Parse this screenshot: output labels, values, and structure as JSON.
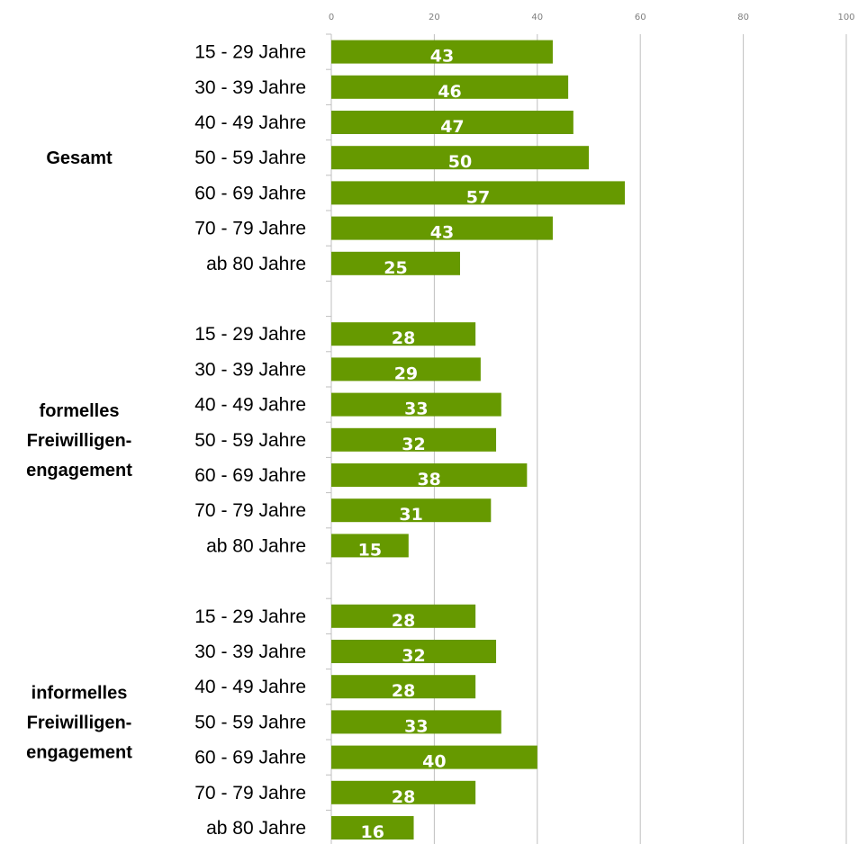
{
  "chart_data": {
    "type": "bar",
    "orientation": "horizontal",
    "xlim": [
      0,
      100
    ],
    "x_ticks": [
      "0",
      "20",
      "40",
      "60",
      "80",
      "100"
    ],
    "grid": true,
    "bar_color": "#669900",
    "groups": [
      {
        "label_lines": [
          "Gesamt"
        ],
        "categories": [
          "15 - 29 Jahre",
          "30 - 39 Jahre",
          "40 - 49 Jahre",
          "50 - 59 Jahre",
          "60 - 69 Jahre",
          "70 - 79 Jahre",
          "ab 80 Jahre"
        ],
        "values": [
          43,
          46,
          47,
          50,
          57,
          43,
          25
        ]
      },
      {
        "label_lines": [
          "formelles",
          "Freiwilligen-",
          "engagement"
        ],
        "categories": [
          "15 - 29 Jahre",
          "30 - 39 Jahre",
          "40 - 49 Jahre",
          "50 - 59 Jahre",
          "60 - 69 Jahre",
          "70 - 79 Jahre",
          "ab 80 Jahre"
        ],
        "values": [
          28,
          29,
          33,
          32,
          38,
          31,
          15
        ]
      },
      {
        "label_lines": [
          "informelles",
          "Freiwilligen-",
          "engagement"
        ],
        "categories": [
          "15 - 29 Jahre",
          "30 - 39 Jahre",
          "40 - 49 Jahre",
          "50 - 59 Jahre",
          "60 - 69 Jahre",
          "70 - 79 Jahre",
          "ab 80 Jahre"
        ],
        "values": [
          28,
          32,
          28,
          33,
          40,
          28,
          16
        ]
      }
    ]
  }
}
